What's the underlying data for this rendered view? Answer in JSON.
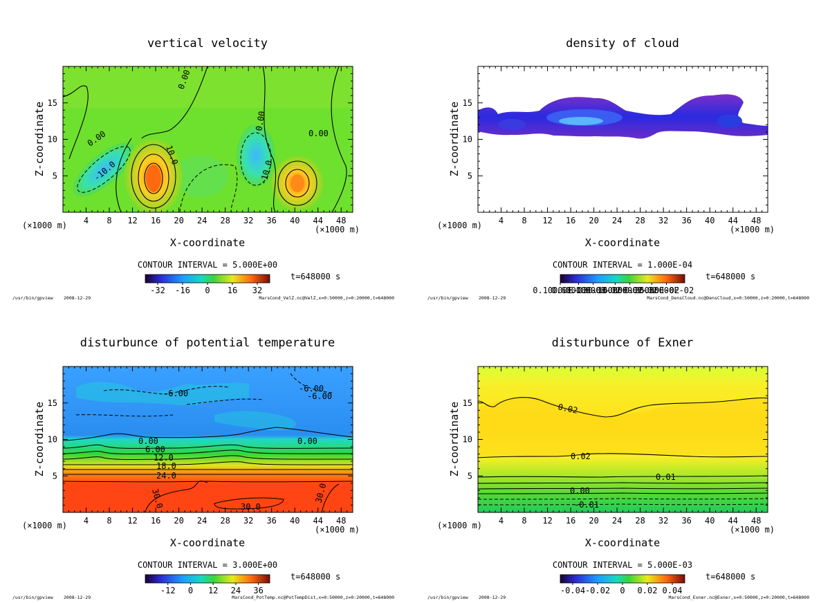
{
  "common": {
    "xlabel": "X-coordinate",
    "ylabel": "Z-coordinate",
    "unit_left": "(×1000 m)",
    "unit_right": "(×1000 m)",
    "time": "t=648000 s",
    "program": "/usr/bin/gpview",
    "date": "2008-12-29",
    "colors": {
      "green": "#2fd32f",
      "yellow": "#ffe71a",
      "blue": "#2f8ff0",
      "red": "#ff4a1a",
      "purple": "#7a2fbf"
    }
  },
  "chart_data": [
    {
      "type": "heatmap",
      "title": "vertical velocity",
      "xlabel": "X-coordinate",
      "ylabel": "Z-coordinate",
      "xlim": [
        0,
        50
      ],
      "ylim": [
        0,
        20
      ],
      "xticks": [
        4,
        8,
        12,
        16,
        20,
        24,
        28,
        32,
        36,
        40,
        44,
        48
      ],
      "yticks": [
        5,
        10,
        15
      ],
      "contour_interval": "CONTOUR INTERVAL = 5.000E+00",
      "colorbar_ticks": [
        "-32",
        "-16",
        "0",
        "16",
        "32"
      ],
      "colorbar_range": [
        -40,
        40
      ],
      "contour_labels": [
        "0.00",
        "0.00",
        "0.00",
        "0.00",
        "10.0",
        "-10.0",
        "-10.0"
      ],
      "source": "MarsCond_VelZ.nc@VelZ,x=0:50000,z=0:20000,t=648000"
    },
    {
      "type": "heatmap",
      "title": "density of cloud",
      "xlabel": "X-coordinate",
      "ylabel": "Z-coordinate",
      "xlim": [
        0,
        50
      ],
      "ylim": [
        0,
        20
      ],
      "xticks": [
        4,
        8,
        12,
        16,
        20,
        24,
        28,
        32,
        36,
        40,
        44,
        48
      ],
      "yticks": [
        5,
        10,
        15
      ],
      "contour_interval": "CONTOUR INTERVAL = 1.000E-04",
      "colorbar_ticks": [
        "0.10000E-03",
        "0.60000E-03",
        "0.10000E-02",
        "0.16000E-02",
        "0.20000E-02",
        "0.26000E-02",
        "0.30000E-02"
      ],
      "colorbar_range": [
        0.0001,
        0.0035
      ],
      "contour_labels": [],
      "source": "MarsCond_DensCloud.nc@DensCloud,x=0:50000,z=0:20000,t=648000"
    },
    {
      "type": "heatmap",
      "title": "disturbunce of potential temperature",
      "xlabel": "X-coordinate",
      "ylabel": "Z-coordinate",
      "xlim": [
        0,
        50
      ],
      "ylim": [
        0,
        20
      ],
      "xticks": [
        4,
        8,
        12,
        16,
        20,
        24,
        28,
        32,
        36,
        40,
        44,
        48
      ],
      "yticks": [
        5,
        10,
        15
      ],
      "contour_interval": "CONTOUR INTERVAL = 3.000E+00",
      "colorbar_ticks": [
        "-12",
        "0",
        "12",
        "24",
        "36"
      ],
      "colorbar_range": [
        -24,
        42
      ],
      "contour_labels": [
        "-6.00",
        "-6.00",
        "-6.00",
        "0.00",
        "0.00",
        "6.00",
        "12.0",
        "18.0",
        "24.0",
        "30.0",
        "30.0",
        "30.0"
      ],
      "source": "MarsCond_PotTemp.nc@PotTempDist,x=0:50000,z=0:20000,t=648000"
    },
    {
      "type": "heatmap",
      "title": "disturbunce of Exner",
      "xlabel": "X-coordinate",
      "ylabel": "Z-coordinate",
      "xlim": [
        0,
        50
      ],
      "ylim": [
        0,
        20
      ],
      "xticks": [
        4,
        8,
        12,
        16,
        20,
        24,
        28,
        32,
        36,
        40,
        44,
        48
      ],
      "yticks": [
        5,
        10,
        15
      ],
      "contour_interval": "CONTOUR INTERVAL = 5.000E-03",
      "colorbar_ticks": [
        "-0.04",
        "-0.02",
        "0",
        "0.02",
        "0.04"
      ],
      "colorbar_range": [
        -0.05,
        0.05
      ],
      "contour_labels": [
        "0.02",
        "0.02",
        "0.01",
        "0.00",
        "-0.01"
      ],
      "source": "MarsCond_Exner.nc@Exner,x=0:50000,z=0:20000,t=648000"
    }
  ]
}
